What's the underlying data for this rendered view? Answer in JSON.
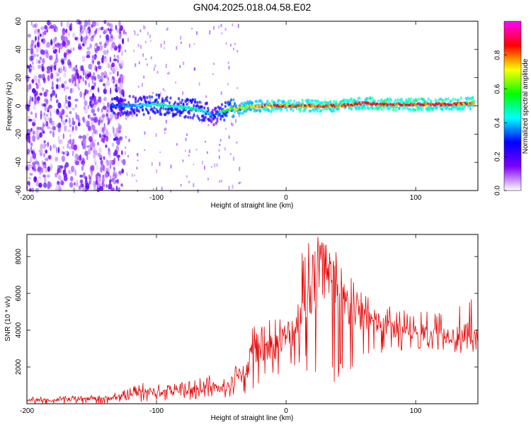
{
  "title": "GN04.2025.018.04.58.E02",
  "chart_data": [
    {
      "type": "heatmap",
      "xlabel": "Height of straight line (km)",
      "ylabel": "Frequency (Hz)",
      "xlim": [
        -200,
        148
      ],
      "ylim": [
        -60,
        60
      ],
      "xticks": [
        -200,
        -100,
        0,
        100
      ],
      "yticks": [
        -60,
        -40,
        -20,
        0,
        20,
        40,
        60
      ],
      "colorbar": {
        "label": "Normalized spectral amplitude",
        "range": [
          0,
          1
        ],
        "ticks": [
          "0.0",
          "0.2",
          "0.4",
          "0.6",
          "0.8"
        ],
        "colors": [
          "#ffffff",
          "#7d00ff",
          "#0000ff",
          "#00ffff",
          "#00ff00",
          "#ffff00",
          "#ff0000",
          "#ff00ff"
        ]
      },
      "ridge": {
        "x": [
          -135,
          -120,
          -100,
          -90,
          -80,
          -70,
          -60,
          -55,
          -50,
          -40,
          -30,
          -20,
          -10,
          0,
          20,
          40,
          60,
          80,
          100,
          120,
          145
        ],
        "y": [
          0,
          0,
          1,
          0,
          -1,
          -2,
          -5,
          -7,
          -4,
          -2,
          -1,
          0,
          0,
          0,
          0,
          0,
          2,
          1,
          1,
          1,
          2
        ],
        "amplitude": [
          0.35,
          0.4,
          0.5,
          0.5,
          0.5,
          0.5,
          0.45,
          0.3,
          0.5,
          0.7,
          0.75,
          0.8,
          0.85,
          0.85,
          0.85,
          0.85,
          0.9,
          0.9,
          0.9,
          0.9,
          0.85
        ]
      },
      "noise_region": {
        "x": [
          -200,
          -125
        ],
        "y": [
          -60,
          60
        ],
        "amplitude": 0.15
      }
    },
    {
      "type": "line",
      "xlabel": "Height of straight line (km)",
      "ylabel": "SNR (10 * v/v)",
      "xlim": [
        -200,
        148
      ],
      "ylim": [
        0,
        9200
      ],
      "xticks": [
        -200,
        -100,
        0,
        100
      ],
      "yticks": [
        2000,
        4000,
        6000,
        8000
      ],
      "color": "#e60000",
      "x": [
        -200,
        -180,
        -160,
        -140,
        -120,
        -110,
        -100,
        -90,
        -80,
        -70,
        -60,
        -50,
        -40,
        -30,
        -25,
        -20,
        -15,
        -10,
        -5,
        0,
        5,
        10,
        15,
        20,
        25,
        30,
        35,
        40,
        45,
        50,
        55,
        60,
        70,
        80,
        90,
        100,
        110,
        120,
        130,
        140,
        148
      ],
      "y": [
        200,
        200,
        250,
        300,
        400,
        700,
        600,
        600,
        700,
        800,
        1000,
        800,
        1200,
        2000,
        3000,
        2600,
        3200,
        3000,
        3400,
        3600,
        4000,
        4600,
        5600,
        6400,
        6800,
        7200,
        6400,
        6000,
        5400,
        5200,
        5000,
        4800,
        4400,
        4200,
        4000,
        3900,
        3800,
        3800,
        3700,
        3600,
        3600
      ],
      "y_min": [
        0,
        0,
        0,
        0,
        50,
        100,
        100,
        150,
        150,
        200,
        200,
        200,
        300,
        500,
        800,
        900,
        1200,
        1300,
        1500,
        1500,
        1800,
        2000,
        1500,
        1200,
        800,
        600,
        900,
        700,
        1500,
        1800,
        2000,
        2600,
        2600,
        2600,
        2700,
        2900,
        3000,
        2900,
        2700,
        2600,
        2800
      ],
      "y_max": [
        400,
        400,
        450,
        500,
        900,
        1200,
        1100,
        1000,
        1200,
        1300,
        1600,
        1400,
        2000,
        3600,
        4400,
        4000,
        4800,
        4600,
        5000,
        5400,
        6200,
        7800,
        8900,
        8600,
        9200,
        8800,
        8400,
        8900,
        7200,
        7300,
        6800,
        6200,
        5500,
        5400,
        5200,
        5000,
        5100,
        5000,
        4800,
        6300,
        4700
      ],
      "annotations": []
    }
  ]
}
